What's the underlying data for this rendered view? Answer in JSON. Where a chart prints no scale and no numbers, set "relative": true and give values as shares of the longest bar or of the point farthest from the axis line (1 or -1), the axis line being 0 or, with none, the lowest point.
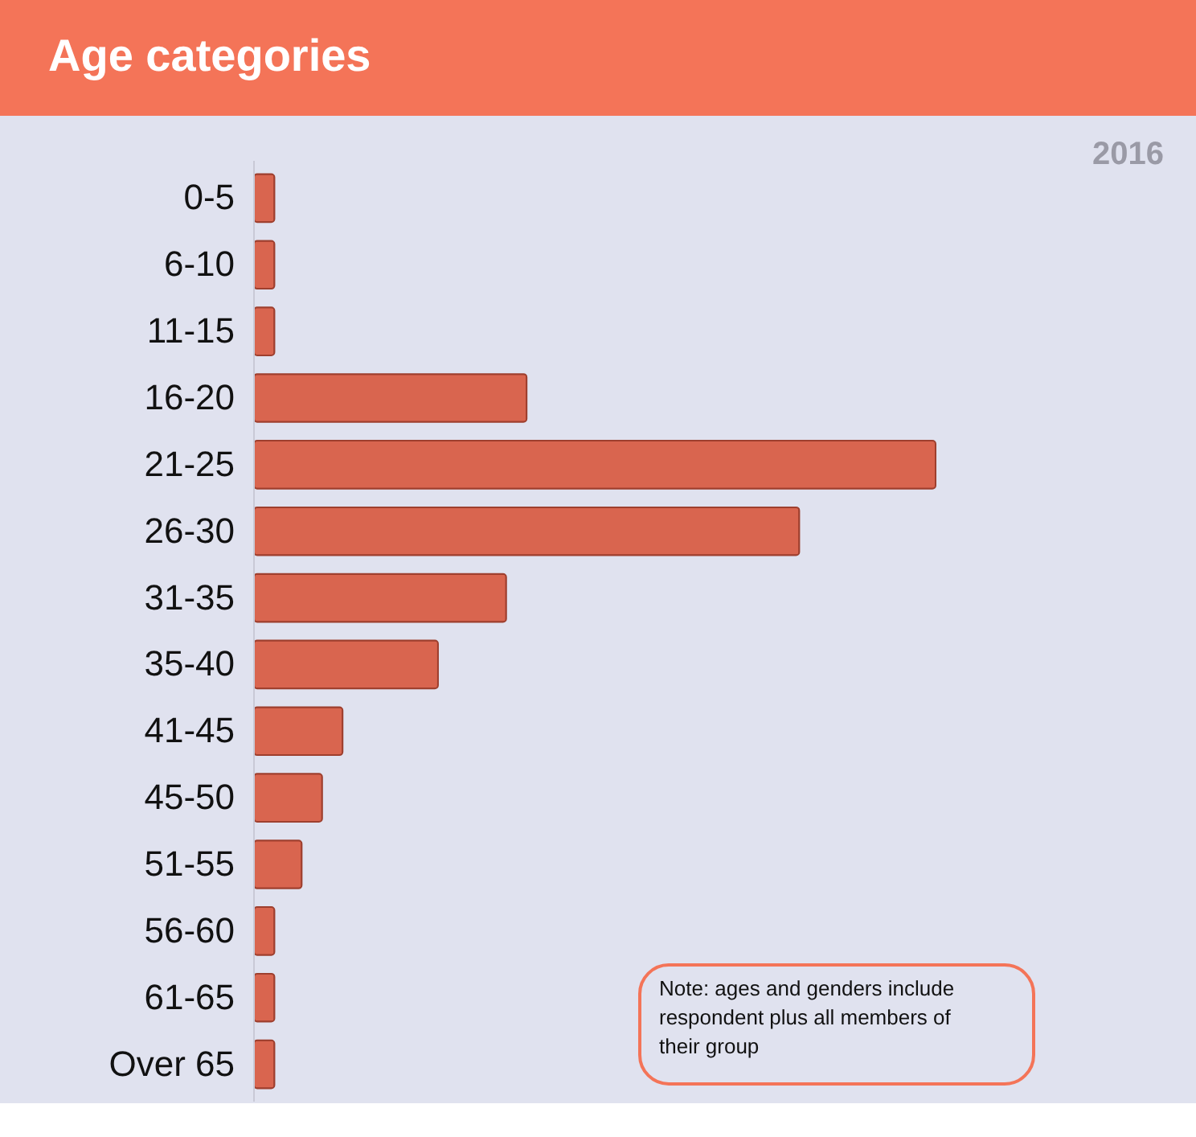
{
  "chart_data": {
    "type": "bar",
    "orientation": "horizontal",
    "relative": true,
    "title": "Age categories",
    "categories": [
      "0-5",
      "6-10",
      "11-15",
      "16-20",
      "21-25",
      "26-30",
      "31-35",
      "35-40",
      "41-45",
      "45-50",
      "51-55",
      "56-60",
      "61-65",
      "Over 65"
    ],
    "values": [
      0.03,
      0.03,
      0.03,
      0.4,
      1,
      0.8,
      0.37,
      0.27,
      0.13,
      0.1,
      0.07,
      0.03,
      0.03,
      0.03
    ],
    "color": "#d9654f",
    "annotations": [
      "2016",
      "Note: ages and genders include respondent plus all members of their group"
    ]
  }
}
